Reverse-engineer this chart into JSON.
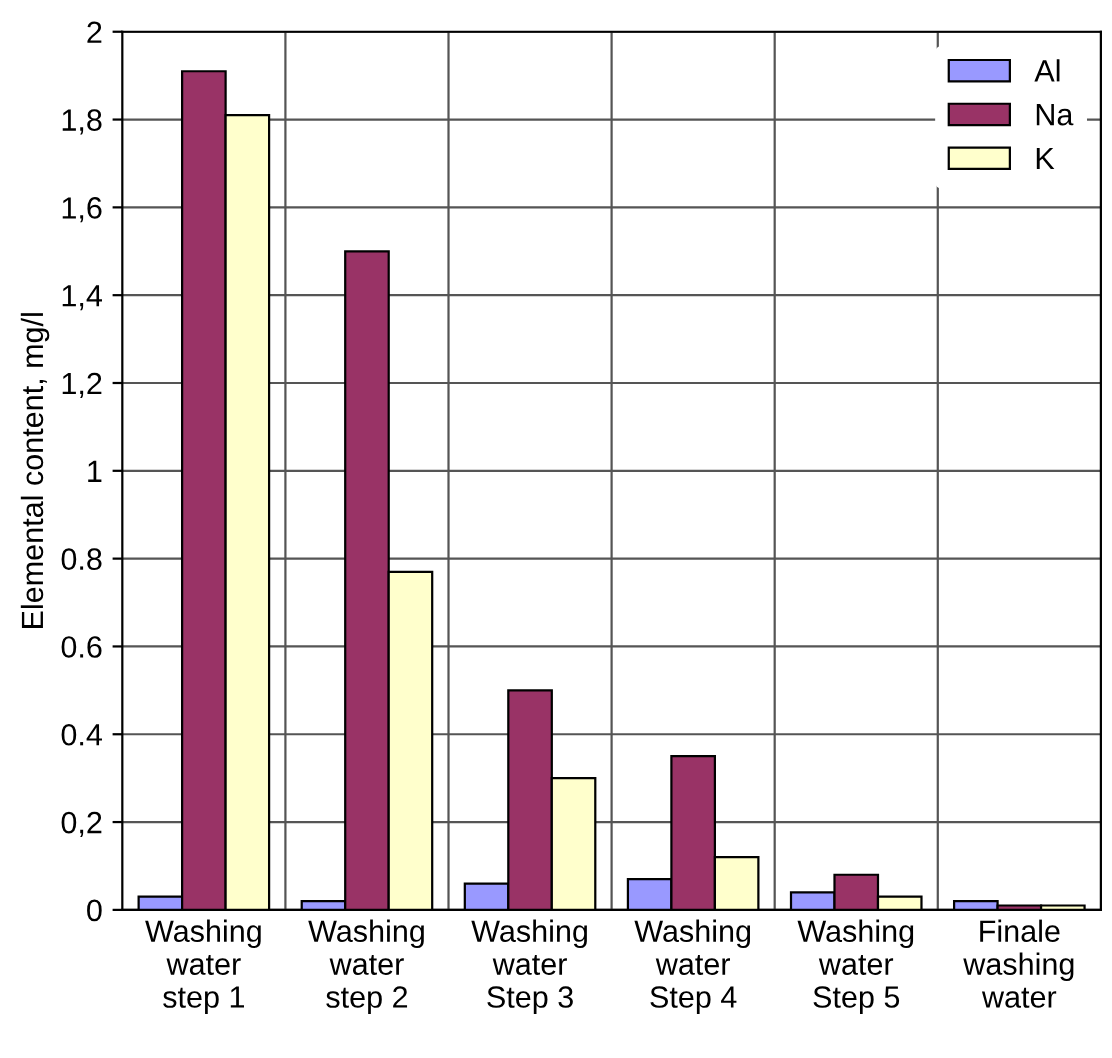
{
  "chart_data": {
    "type": "bar",
    "ylabel": "Elemental content, mg/l",
    "categories": [
      "Washing\nwater\nstep 1",
      "Washing\nwater\nstep 2",
      "Washing\nwater\nStep 3",
      "Washing\nwater\nStep 4",
      "Washing\nwater\nStep 5",
      "Finale\nwashing\nwater"
    ],
    "series": [
      {
        "name": "Al",
        "color": "#9999ff",
        "values": [
          0.03,
          0.02,
          0.06,
          0.07,
          0.04,
          0.02
        ]
      },
      {
        "name": "Na",
        "color": "#993366",
        "values": [
          1.91,
          1.5,
          0.5,
          0.35,
          0.08,
          0.01
        ]
      },
      {
        "name": "K",
        "color": "#ffffcc",
        "values": [
          1.81,
          0.77,
          0.3,
          0.12,
          0.03,
          0.01
        ]
      }
    ],
    "ylim": [
      0,
      2
    ],
    "yticks": [
      0,
      {
        "value": 0.2,
        "label": "0,2"
      },
      {
        "value": 0.4,
        "label": "0.4"
      },
      {
        "value": 0.6,
        "label": "0.6"
      },
      {
        "value": 0.8,
        "label": "0.8"
      },
      1,
      {
        "value": 1.2,
        "label": "1,2"
      },
      {
        "value": 1.4,
        "label": "1,4"
      },
      {
        "value": 1.6,
        "label": "1,6"
      },
      {
        "value": 1.8,
        "label": "1,8"
      },
      2
    ],
    "grid": true,
    "legend": "top right"
  }
}
